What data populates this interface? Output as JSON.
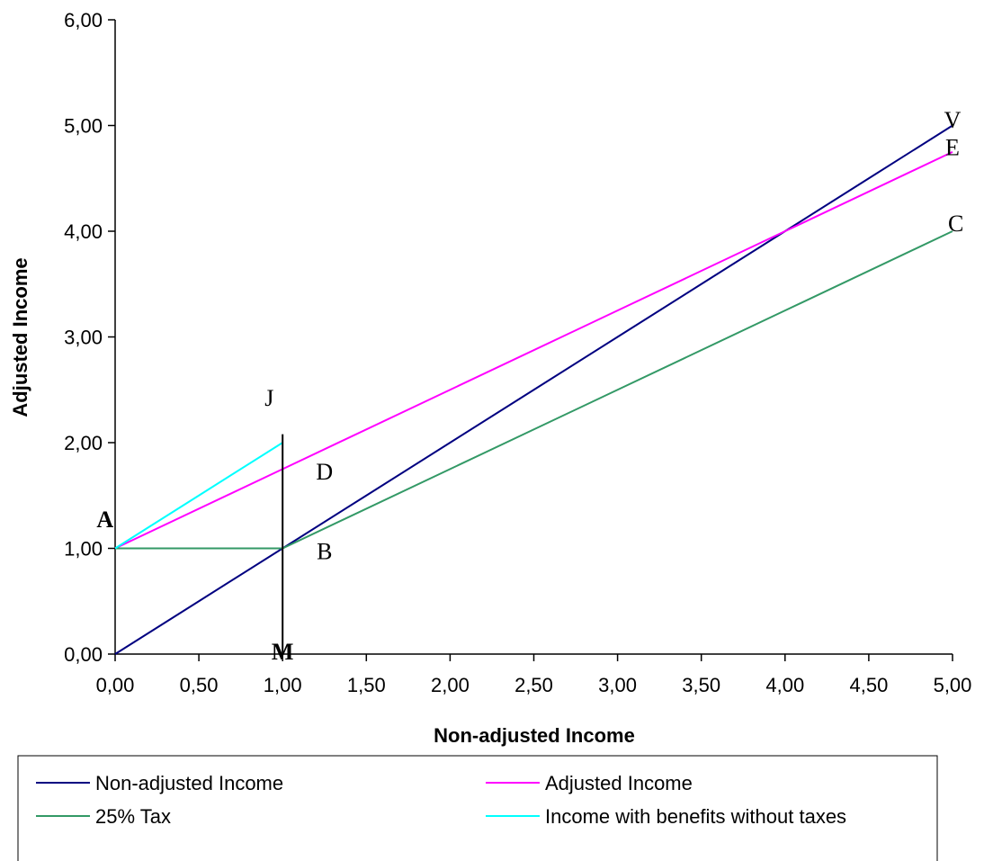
{
  "chart_data": {
    "type": "line",
    "xlabel": "Non-adjusted Income",
    "ylabel": "Adjusted Income",
    "xlim": [
      0,
      5
    ],
    "ylim": [
      0,
      6
    ],
    "x_ticks": [
      "0,00",
      "0,50",
      "1,00",
      "1,50",
      "2,00",
      "2,50",
      "3,00",
      "3,50",
      "4,00",
      "4,50",
      "5,00"
    ],
    "y_ticks": [
      "0,00",
      "1,00",
      "2,00",
      "3,00",
      "4,00",
      "5,00",
      "6,00"
    ],
    "grid": false,
    "legend_position": "bottom",
    "series": [
      {
        "name": "Non-adjusted Income",
        "color": "#000080",
        "x": [
          0,
          0.5,
          1,
          1.5,
          2,
          2.5,
          3,
          3.5,
          4,
          4.5,
          5
        ],
        "y": [
          0,
          0.5,
          1,
          1.5,
          2,
          2.5,
          3,
          3.5,
          4,
          4.5,
          5
        ]
      },
      {
        "name": "Adjusted Income",
        "color": "#FF00FF",
        "x": [
          0,
          1,
          2,
          3,
          4,
          5
        ],
        "y": [
          1,
          1.75,
          2.5,
          3.25,
          4,
          4.75
        ]
      },
      {
        "name": "25% Tax",
        "color": "#339966",
        "x": [
          0,
          1,
          2,
          3,
          4,
          5
        ],
        "y": [
          1,
          1,
          1.75,
          2.5,
          3.25,
          4
        ]
      },
      {
        "name": "Income with benefits without taxes",
        "color": "#00FFFF",
        "x": [
          0,
          0.5,
          1
        ],
        "y": [
          1,
          1.5,
          2
        ]
      }
    ],
    "vertical_line": {
      "x": 1,
      "y": [
        0,
        2.08
      ],
      "color": "#000000"
    },
    "annotations": [
      {
        "text": "A",
        "x": -0.06,
        "y": 1.2,
        "bold": true
      },
      {
        "text": "B",
        "x": 1.25,
        "y": 0.9,
        "bold": false
      },
      {
        "text": "D",
        "x": 1.25,
        "y": 1.65,
        "bold": false
      },
      {
        "text": "J",
        "x": 0.92,
        "y": 2.35,
        "bold": false
      },
      {
        "text": "M",
        "x": 1.0,
        "y": -0.05,
        "bold": true
      },
      {
        "text": "C",
        "x": 5.02,
        "y": 4.0,
        "bold": false
      },
      {
        "text": "E",
        "x": 5.0,
        "y": 4.72,
        "bold": false
      },
      {
        "text": "V",
        "x": 5.0,
        "y": 4.98,
        "bold": false
      }
    ]
  }
}
